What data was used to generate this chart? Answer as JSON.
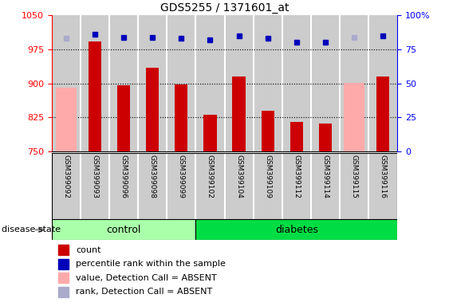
{
  "title": "GDS5255 / 1371601_at",
  "samples": [
    "GSM399092",
    "GSM399093",
    "GSM399096",
    "GSM399098",
    "GSM399099",
    "GSM399102",
    "GSM399104",
    "GSM399109",
    "GSM399112",
    "GSM399114",
    "GSM399115",
    "GSM399116"
  ],
  "count_values": [
    null,
    993,
    896,
    935,
    897,
    831,
    916,
    840,
    815,
    812,
    null,
    916
  ],
  "absent_value_bars": [
    891,
    null,
    null,
    null,
    null,
    null,
    null,
    null,
    null,
    null,
    901,
    null
  ],
  "percentile_values": [
    83,
    86,
    84,
    84,
    83,
    82,
    85,
    83,
    80,
    80,
    84,
    85
  ],
  "absent_rank_values": [
    83,
    null,
    null,
    null,
    null,
    null,
    null,
    null,
    null,
    null,
    84,
    null
  ],
  "ylim_left": [
    750,
    1050
  ],
  "ylim_right": [
    0,
    100
  ],
  "yticks_left": [
    750,
    825,
    900,
    975,
    1050
  ],
  "yticks_right": [
    0,
    25,
    50,
    75,
    100
  ],
  "grid_lines": [
    825,
    900,
    975
  ],
  "n_control": 5,
  "bar_color_red": "#cc0000",
  "bar_color_pink": "#ffaaaa",
  "dot_color_blue": "#0000bb",
  "dot_color_lightblue": "#aaaacc",
  "control_bg": "#aaffaa",
  "diabetes_bg": "#00dd44",
  "sample_bg": "#cccccc",
  "plot_bg": "#ffffff",
  "legend_items": [
    {
      "color": "#cc0000",
      "label": "count"
    },
    {
      "color": "#0000bb",
      "label": "percentile rank within the sample"
    },
    {
      "color": "#ffaaaa",
      "label": "value, Detection Call = ABSENT"
    },
    {
      "color": "#aaaacc",
      "label": "rank, Detection Call = ABSENT"
    }
  ]
}
